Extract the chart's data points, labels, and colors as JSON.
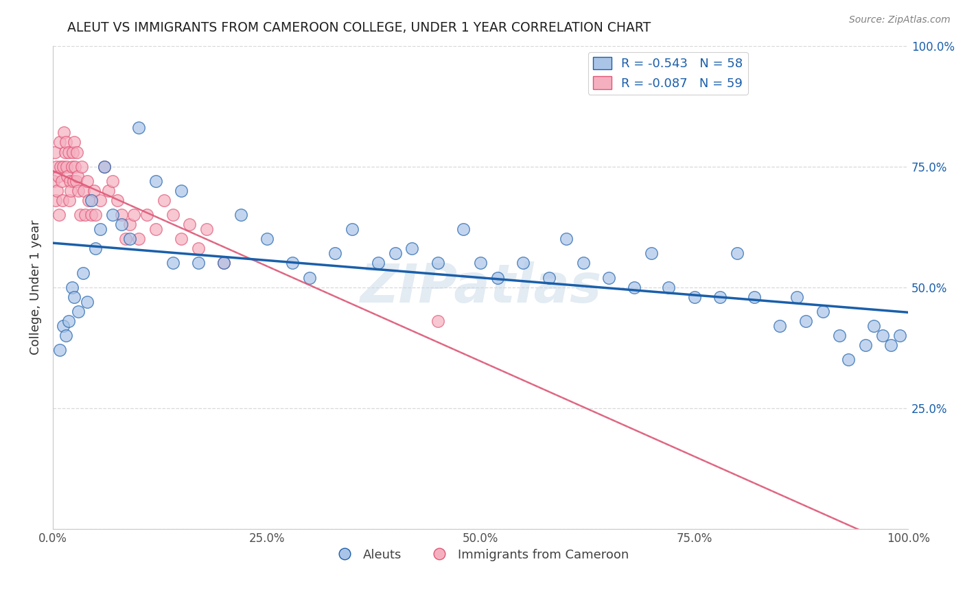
{
  "title": "ALEUT VS IMMIGRANTS FROM CAMEROON COLLEGE, UNDER 1 YEAR CORRELATION CHART",
  "source": "Source: ZipAtlas.com",
  "ylabel": "College, Under 1 year",
  "legend_labels": [
    "Aleuts",
    "Immigrants from Cameroon"
  ],
  "aleut_R": -0.543,
  "aleut_N": 58,
  "camr_R": -0.087,
  "camr_N": 59,
  "aleut_color": "#aac4e8",
  "camr_color": "#f5b0c0",
  "aleut_line_color": "#1a5faa",
  "camr_line_color": "#e05575",
  "dashed_line_color": "#c0b8b8",
  "title_color": "#202020",
  "source_color": "#808080",
  "legend_text_color": "#1a5faa",
  "background_color": "#ffffff",
  "aleut_x": [
    0.008,
    0.012,
    0.015,
    0.018,
    0.022,
    0.025,
    0.03,
    0.035,
    0.04,
    0.045,
    0.05,
    0.055,
    0.06,
    0.07,
    0.08,
    0.09,
    0.1,
    0.12,
    0.14,
    0.15,
    0.17,
    0.2,
    0.22,
    0.25,
    0.28,
    0.3,
    0.33,
    0.35,
    0.38,
    0.4,
    0.42,
    0.45,
    0.48,
    0.5,
    0.52,
    0.55,
    0.58,
    0.6,
    0.62,
    0.65,
    0.68,
    0.7,
    0.72,
    0.75,
    0.78,
    0.8,
    0.82,
    0.85,
    0.87,
    0.88,
    0.9,
    0.92,
    0.93,
    0.95,
    0.96,
    0.97,
    0.98,
    0.99
  ],
  "aleut_y": [
    0.37,
    0.42,
    0.4,
    0.43,
    0.5,
    0.48,
    0.45,
    0.53,
    0.47,
    0.68,
    0.58,
    0.62,
    0.75,
    0.65,
    0.63,
    0.6,
    0.83,
    0.72,
    0.55,
    0.7,
    0.55,
    0.55,
    0.65,
    0.6,
    0.55,
    0.52,
    0.57,
    0.62,
    0.55,
    0.57,
    0.58,
    0.55,
    0.62,
    0.55,
    0.52,
    0.55,
    0.52,
    0.6,
    0.55,
    0.52,
    0.5,
    0.57,
    0.5,
    0.48,
    0.48,
    0.57,
    0.48,
    0.42,
    0.48,
    0.43,
    0.45,
    0.4,
    0.35,
    0.38,
    0.42,
    0.4,
    0.38,
    0.4
  ],
  "camr_x": [
    0.001,
    0.002,
    0.003,
    0.004,
    0.005,
    0.006,
    0.007,
    0.008,
    0.009,
    0.01,
    0.011,
    0.012,
    0.013,
    0.014,
    0.015,
    0.016,
    0.017,
    0.018,
    0.019,
    0.02,
    0.021,
    0.022,
    0.023,
    0.024,
    0.025,
    0.026,
    0.027,
    0.028,
    0.029,
    0.03,
    0.032,
    0.034,
    0.036,
    0.038,
    0.04,
    0.042,
    0.045,
    0.048,
    0.05,
    0.055,
    0.06,
    0.065,
    0.07,
    0.075,
    0.08,
    0.085,
    0.09,
    0.095,
    0.1,
    0.11,
    0.12,
    0.13,
    0.14,
    0.15,
    0.16,
    0.17,
    0.18,
    0.2,
    0.45
  ],
  "camr_y": [
    0.72,
    0.78,
    0.68,
    0.75,
    0.7,
    0.73,
    0.65,
    0.8,
    0.75,
    0.72,
    0.68,
    0.75,
    0.82,
    0.78,
    0.8,
    0.75,
    0.73,
    0.78,
    0.68,
    0.72,
    0.7,
    0.75,
    0.78,
    0.72,
    0.8,
    0.75,
    0.72,
    0.78,
    0.73,
    0.7,
    0.65,
    0.75,
    0.7,
    0.65,
    0.72,
    0.68,
    0.65,
    0.7,
    0.65,
    0.68,
    0.75,
    0.7,
    0.72,
    0.68,
    0.65,
    0.6,
    0.63,
    0.65,
    0.6,
    0.65,
    0.62,
    0.68,
    0.65,
    0.6,
    0.63,
    0.58,
    0.62,
    0.55,
    0.43
  ],
  "xlim": [
    0.0,
    1.0
  ],
  "ylim": [
    0.0,
    1.0
  ],
  "xticks": [
    0.0,
    0.25,
    0.5,
    0.75,
    1.0
  ],
  "yticks": [
    0.0,
    0.25,
    0.5,
    0.75,
    1.0
  ],
  "xticklabels": [
    "0.0%",
    "25.0%",
    "50.0%",
    "75.0%",
    "100.0%"
  ],
  "right_yticklabels": [
    "",
    "25.0%",
    "50.0%",
    "75.0%",
    "100.0%"
  ],
  "grid_color": "#d8d8d8",
  "watermark": "ZIPatlas"
}
